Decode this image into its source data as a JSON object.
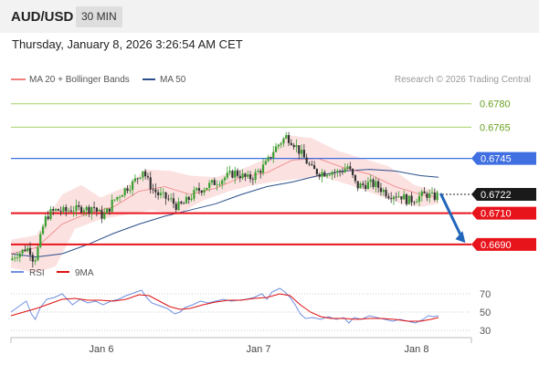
{
  "header": {
    "pair": "AUD/USD",
    "timeframe": "30 MIN",
    "datetime": "Thursday, January 8, 2026 3:26:54 AM CET"
  },
  "colors": {
    "ma20": "#f08080",
    "bollinger_fill": "#fcdcdc",
    "ma50": "#2c4f8a",
    "resistance_green": "#8cc63f",
    "level_blue": "#3f6fe0",
    "level_red": "#e8141b",
    "current_price": "#1a1a1a",
    "arrow": "#2266bb",
    "rsi": "#6f8fe0",
    "rsi_ma": "#e01010"
  },
  "chart_data": [
    {
      "type": "candlestick",
      "legend": [
        {
          "name": "MA 20 + Bollinger Bands",
          "color": "#f08080"
        },
        {
          "name": "MA 50",
          "color": "#2c4f8a"
        }
      ],
      "legend_position": "top-left",
      "attribution": "Research © 2026 Trading Central",
      "x_ticks": [
        "Jan 6",
        "Jan 7",
        "Jan 8"
      ],
      "ylim": [
        0.668,
        0.6788
      ],
      "levels": [
        {
          "value": 0.678,
          "label": "0.6780",
          "style": "green-text"
        },
        {
          "value": 0.6765,
          "label": "0.6765",
          "style": "green-text"
        },
        {
          "value": 0.6745,
          "label": "0.6745",
          "style": "blue-tag"
        },
        {
          "value": 0.6722,
          "label": "0.6722",
          "style": "current-tag"
        },
        {
          "value": 0.671,
          "label": "0.6710",
          "style": "red-tag"
        },
        {
          "value": 0.669,
          "label": "0.6690",
          "style": "red-tag"
        }
      ],
      "close_path": [
        [
          0,
          0.668
        ],
        [
          4,
          0.6684
        ],
        [
          8,
          0.6685
        ],
        [
          12,
          0.6688
        ],
        [
          15,
          0.6686
        ],
        [
          18,
          0.6679
        ],
        [
          22,
          0.669
        ],
        [
          26,
          0.6705
        ],
        [
          30,
          0.671
        ],
        [
          36,
          0.6712
        ],
        [
          42,
          0.6711
        ],
        [
          48,
          0.6713
        ],
        [
          52,
          0.6712
        ],
        [
          56,
          0.6714
        ],
        [
          60,
          0.6712
        ],
        [
          64,
          0.6715
        ],
        [
          68,
          0.671
        ],
        [
          72,
          0.6708
        ],
        [
          76,
          0.6712
        ],
        [
          80,
          0.6718
        ],
        [
          85,
          0.6722
        ],
        [
          90,
          0.6726
        ],
        [
          95,
          0.6729
        ],
        [
          100,
          0.6734
        ],
        [
          103,
          0.6738
        ],
        [
          106,
          0.6732
        ],
        [
          110,
          0.6726
        ],
        [
          115,
          0.6722
        ],
        [
          120,
          0.672
        ],
        [
          125,
          0.6718
        ],
        [
          130,
          0.6714
        ],
        [
          135,
          0.6716
        ],
        [
          140,
          0.672
        ],
        [
          145,
          0.6724
        ],
        [
          150,
          0.6726
        ],
        [
          155,
          0.6728
        ],
        [
          160,
          0.673
        ],
        [
          165,
          0.6732
        ],
        [
          170,
          0.6734
        ],
        [
          175,
          0.6736
        ],
        [
          180,
          0.6734
        ],
        [
          185,
          0.6732
        ],
        [
          190,
          0.6734
        ],
        [
          195,
          0.6738
        ],
        [
          200,
          0.6742
        ],
        [
          205,
          0.675
        ],
        [
          210,
          0.6755
        ],
        [
          215,
          0.6759
        ],
        [
          220,
          0.6756
        ],
        [
          225,
          0.675
        ],
        [
          230,
          0.6744
        ],
        [
          235,
          0.6738
        ],
        [
          240,
          0.6736
        ],
        [
          245,
          0.6736
        ],
        [
          250,
          0.6737
        ],
        [
          255,
          0.6736
        ],
        [
          260,
          0.6738
        ],
        [
          263,
          0.674
        ],
        [
          266,
          0.6735
        ],
        [
          270,
          0.6727
        ],
        [
          275,
          0.6728
        ],
        [
          280,
          0.6729
        ],
        [
          285,
          0.6728
        ],
        [
          290,
          0.6725
        ],
        [
          295,
          0.6722
        ],
        [
          300,
          0.6722
        ],
        [
          305,
          0.6721
        ],
        [
          310,
          0.6718
        ],
        [
          315,
          0.6719
        ],
        [
          320,
          0.6721
        ],
        [
          325,
          0.6722
        ],
        [
          330,
          0.672
        ],
        [
          334,
          0.6722
        ]
      ],
      "ma20_path": [
        [
          0,
          0.6684
        ],
        [
          20,
          0.6688
        ],
        [
          40,
          0.6703
        ],
        [
          60,
          0.671
        ],
        [
          80,
          0.6714
        ],
        [
          100,
          0.6724
        ],
        [
          120,
          0.6727
        ],
        [
          140,
          0.6722
        ],
        [
          160,
          0.6726
        ],
        [
          180,
          0.6733
        ],
        [
          200,
          0.6736
        ],
        [
          220,
          0.6744
        ],
        [
          240,
          0.6745
        ],
        [
          260,
          0.6739
        ],
        [
          280,
          0.6735
        ],
        [
          300,
          0.6727
        ],
        [
          320,
          0.6722
        ],
        [
          334,
          0.672
        ]
      ],
      "upper_band_path": [
        [
          0,
          0.6693
        ],
        [
          20,
          0.6696
        ],
        [
          40,
          0.6722
        ],
        [
          55,
          0.6728
        ],
        [
          70,
          0.672
        ],
        [
          90,
          0.6727
        ],
        [
          105,
          0.6738
        ],
        [
          125,
          0.6737
        ],
        [
          140,
          0.6734
        ],
        [
          160,
          0.6733
        ],
        [
          180,
          0.6738
        ],
        [
          200,
          0.6745
        ],
        [
          215,
          0.676
        ],
        [
          235,
          0.6758
        ],
        [
          255,
          0.675
        ],
        [
          275,
          0.6745
        ],
        [
          295,
          0.674
        ],
        [
          315,
          0.6728
        ],
        [
          334,
          0.6724
        ]
      ],
      "lower_band_path": [
        [
          0,
          0.6675
        ],
        [
          20,
          0.6672
        ],
        [
          35,
          0.6676
        ],
        [
          50,
          0.67
        ],
        [
          70,
          0.6706
        ],
        [
          90,
          0.6709
        ],
        [
          110,
          0.6712
        ],
        [
          130,
          0.6709
        ],
        [
          150,
          0.6718
        ],
        [
          170,
          0.6724
        ],
        [
          190,
          0.6728
        ],
        [
          205,
          0.673
        ],
        [
          225,
          0.6732
        ],
        [
          245,
          0.6733
        ],
        [
          265,
          0.6728
        ],
        [
          285,
          0.6722
        ],
        [
          305,
          0.6716
        ],
        [
          320,
          0.6714
        ],
        [
          334,
          0.6716
        ]
      ],
      "ma50_path": [
        [
          0,
          0.6684
        ],
        [
          20,
          0.6682
        ],
        [
          40,
          0.6684
        ],
        [
          60,
          0.669
        ],
        [
          80,
          0.6697
        ],
        [
          100,
          0.6703
        ],
        [
          120,
          0.6708
        ],
        [
          140,
          0.6712
        ],
        [
          160,
          0.6716
        ],
        [
          180,
          0.6722
        ],
        [
          200,
          0.6727
        ],
        [
          220,
          0.673
        ],
        [
          240,
          0.6734
        ],
        [
          260,
          0.6737
        ],
        [
          280,
          0.6738
        ],
        [
          300,
          0.6737
        ],
        [
          320,
          0.6734
        ],
        [
          334,
          0.6733
        ]
      ],
      "forecast_arrow": {
        "from": [
          336,
          0.6722
        ],
        "to": [
          355,
          0.6691
        ]
      }
    },
    {
      "type": "line",
      "legend": [
        {
          "name": "RSI",
          "color": "#6f8fe0"
        },
        {
          "name": "9MA",
          "color": "#e01010"
        }
      ],
      "y_ticks": [
        "70",
        "50",
        "30"
      ],
      "ylim": [
        20,
        82
      ],
      "series": [
        {
          "name": "RSI",
          "points": [
            [
              0,
              50
            ],
            [
              6,
              56
            ],
            [
              12,
              62
            ],
            [
              16,
              48
            ],
            [
              19,
              42
            ],
            [
              23,
              55
            ],
            [
              28,
              64
            ],
            [
              34,
              66
            ],
            [
              40,
              70
            ],
            [
              44,
              64
            ],
            [
              48,
              58
            ],
            [
              54,
              64
            ],
            [
              60,
              60
            ],
            [
              66,
              62
            ],
            [
              72,
              58
            ],
            [
              78,
              62
            ],
            [
              84,
              64
            ],
            [
              90,
              68
            ],
            [
              96,
              71
            ],
            [
              102,
              74
            ],
            [
              106,
              66
            ],
            [
              110,
              60
            ],
            [
              116,
              57
            ],
            [
              122,
              54
            ],
            [
              128,
              48
            ],
            [
              132,
              50
            ],
            [
              136,
              55
            ],
            [
              142,
              58
            ],
            [
              148,
              62
            ],
            [
              154,
              60
            ],
            [
              160,
              62
            ],
            [
              166,
              64
            ],
            [
              172,
              62
            ],
            [
              178,
              63
            ],
            [
              184,
              64
            ],
            [
              190,
              66
            ],
            [
              196,
              70
            ],
            [
              200,
              64
            ],
            [
              204,
              72
            ],
            [
              210,
              76
            ],
            [
              214,
              72
            ],
            [
              218,
              66
            ],
            [
              222,
              58
            ],
            [
              226,
              48
            ],
            [
              230,
              43
            ],
            [
              236,
              44
            ],
            [
              242,
              42
            ],
            [
              248,
              45
            ],
            [
              254,
              42
            ],
            [
              260,
              44
            ],
            [
              264,
              38
            ],
            [
              268,
              44
            ],
            [
              274,
              42
            ],
            [
              280,
              46
            ],
            [
              286,
              44
            ],
            [
              292,
              42
            ],
            [
              298,
              40
            ],
            [
              304,
              42
            ],
            [
              310,
              40
            ],
            [
              316,
              38
            ],
            [
              322,
              42
            ],
            [
              326,
              46
            ],
            [
              330,
              45
            ],
            [
              334,
              46
            ]
          ]
        },
        {
          "name": "9MA",
          "points": [
            [
              0,
              46
            ],
            [
              10,
              50
            ],
            [
              20,
              54
            ],
            [
              30,
              59
            ],
            [
              40,
              64
            ],
            [
              50,
              65
            ],
            [
              60,
              63
            ],
            [
              70,
              63
            ],
            [
              80,
              62
            ],
            [
              90,
              64
            ],
            [
              100,
              69
            ],
            [
              108,
              68
            ],
            [
              116,
              62
            ],
            [
              124,
              56
            ],
            [
              132,
              53
            ],
            [
              140,
              54
            ],
            [
              150,
              58
            ],
            [
              160,
              61
            ],
            [
              170,
              63
            ],
            [
              180,
              63
            ],
            [
              190,
              65
            ],
            [
              200,
              66
            ],
            [
              210,
              70
            ],
            [
              218,
              68
            ],
            [
              226,
              58
            ],
            [
              234,
              50
            ],
            [
              242,
              45
            ],
            [
              250,
              43
            ],
            [
              260,
              43
            ],
            [
              270,
              42
            ],
            [
              280,
              43
            ],
            [
              290,
              43
            ],
            [
              300,
              42
            ],
            [
              310,
              40
            ],
            [
              320,
              40
            ],
            [
              328,
              42
            ],
            [
              334,
              44
            ]
          ]
        }
      ]
    }
  ]
}
